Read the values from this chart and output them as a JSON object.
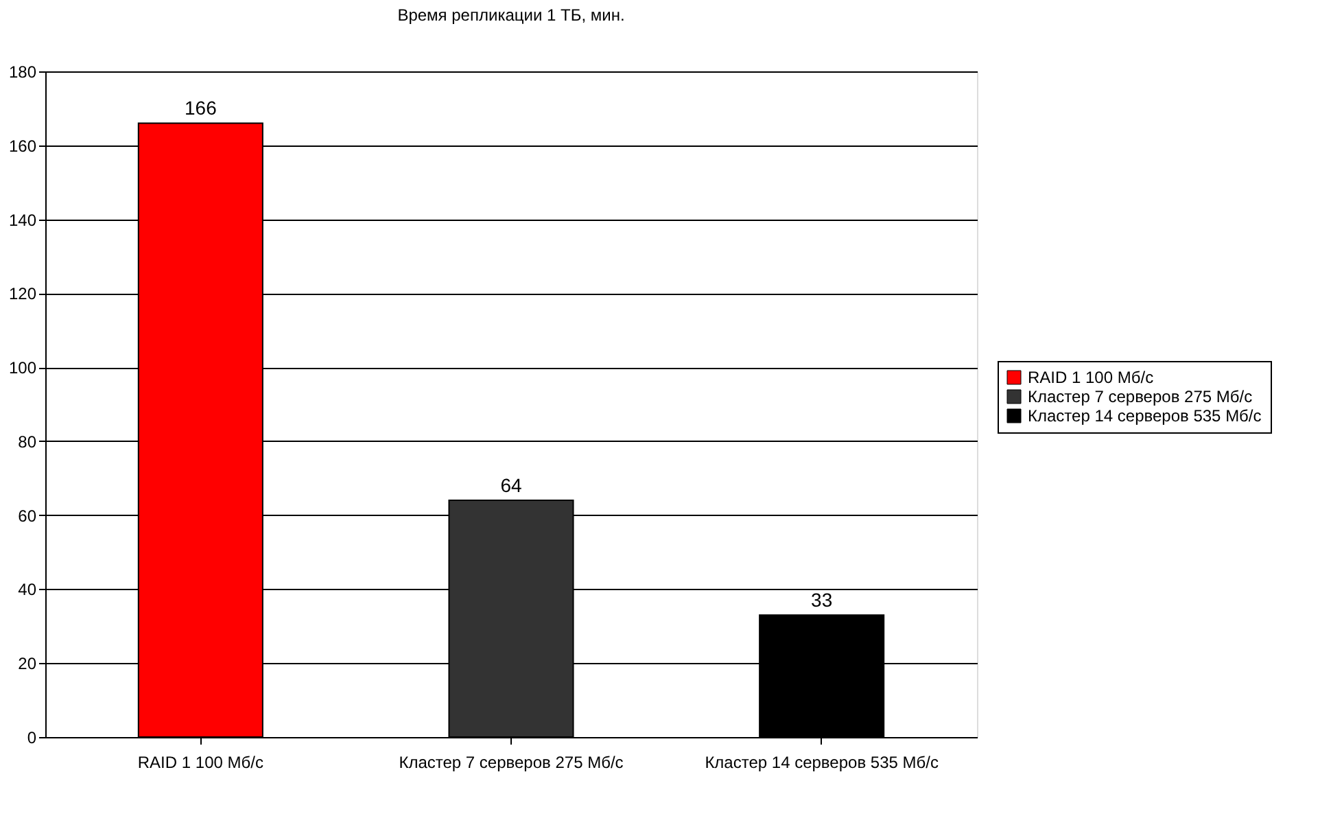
{
  "chart_data": {
    "type": "bar",
    "title": "Время репликации 1 ТБ, мин.",
    "categories": [
      "RAID 1 100 Мб/с",
      "Кластер 7 серверов 275 Мб/с",
      "Кластер 14 серверов 535 Мб/с"
    ],
    "series": [
      {
        "name": "RAID 1 100 Мб/с",
        "color": "#ff0000",
        "values": [
          166,
          null,
          null
        ]
      },
      {
        "name": "Кластер 7 серверов 275 Мб/с",
        "color": "#333333",
        "values": [
          null,
          64,
          null
        ]
      },
      {
        "name": "Кластер 14 серверов 535 Мб/с",
        "color": "#000000",
        "values": [
          null,
          null,
          33
        ]
      }
    ],
    "ylim": [
      0,
      180
    ],
    "yticks": [
      0,
      20,
      40,
      60,
      80,
      100,
      120,
      140,
      160,
      180
    ],
    "grid": "y",
    "legend": "right",
    "data_labels": true
  }
}
